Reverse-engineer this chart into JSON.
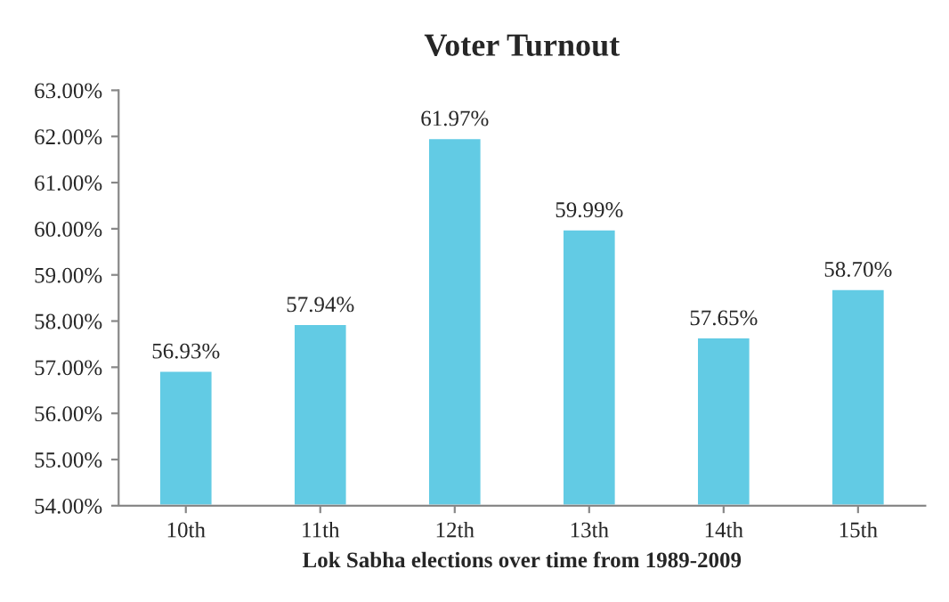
{
  "chart_data": {
    "type": "bar",
    "title": "Voter Turnout",
    "xlabel": "Lok Sabha elections over time from 1989-2009",
    "categories": [
      "10th",
      "11th",
      "12th",
      "13th",
      "14th",
      "15th"
    ],
    "values": [
      56.93,
      57.94,
      61.97,
      59.99,
      57.65,
      58.7
    ],
    "value_labels": [
      "56.93%",
      "57.94%",
      "61.97%",
      "59.99%",
      "57.65%",
      "58.70%"
    ],
    "color": "#62cbe4",
    "ylim": [
      54,
      63
    ],
    "yticks": [
      {
        "value": 54,
        "label": "54.00%"
      },
      {
        "value": 55,
        "label": "55.00%"
      },
      {
        "value": 56,
        "label": "56.00%"
      },
      {
        "value": 57,
        "label": "57.00%"
      },
      {
        "value": 58,
        "label": "58.00%"
      },
      {
        "value": 59,
        "label": "59.00%"
      },
      {
        "value": 60,
        "label": "60.00%"
      },
      {
        "value": 61,
        "label": "61.00%"
      },
      {
        "value": 62,
        "label": "62.00%"
      },
      {
        "value": 63,
        "label": "63.00%"
      }
    ],
    "grid": false,
    "legend": false
  }
}
